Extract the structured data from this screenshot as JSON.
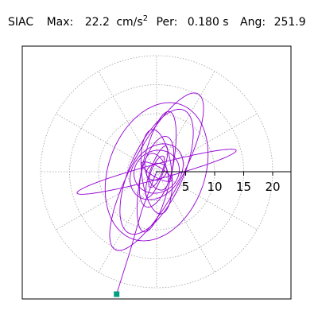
{
  "header": {
    "station": "SIAC",
    "max_label": "Max:",
    "max_value": "22.2",
    "max_unit_base": "cm/s",
    "max_unit_exp": "2",
    "per_label": "Per:",
    "per_value": "0.180 s",
    "ang_label": "Ang:",
    "ang_value": "251.9"
  },
  "colors": {
    "trace": "#9400d3",
    "marker": "#009f80",
    "grid": "#a0a0a0",
    "frame": "#000000"
  },
  "chart_data": {
    "type": "polar-hodogram",
    "title": "SIAC   Max:   22.2 cm/s2   Per:  0.180 s   Ang: 251.9",
    "radial_unit": "cm/s2",
    "radial_ticks": [
      5,
      10,
      15,
      20
    ],
    "radial_max": 20,
    "angular_grid_step_deg": 30,
    "peak_value": 22.2,
    "peak_angle_deg": 251.9,
    "period_s": 0.18,
    "grid": true,
    "loops": [
      {
        "ca": 4.7,
        "sa": 1.1,
        "ang": 70,
        "phase": 0.3
      },
      {
        "ca": 2.9,
        "sa": 0.9,
        "ang": 68,
        "phase": 1.2
      },
      {
        "ca": 6.3,
        "sa": 2.5,
        "ang": 74,
        "phase": 2.0
      },
      {
        "ca": 4.0,
        "sa": 3.6,
        "ang": 30,
        "phase": 0.7
      },
      {
        "ca": 10.6,
        "sa": 2.6,
        "ang": 78,
        "phase": 1.5
      },
      {
        "ca": 5.3,
        "sa": 4.0,
        "ang": 50,
        "phase": 2.6
      },
      {
        "ca": 14.2,
        "sa": 1.3,
        "ang": 15,
        "phase": 3.1
      },
      {
        "ca": 7.3,
        "sa": 2.6,
        "ang": 96,
        "phase": 0.9
      },
      {
        "ca": 11.6,
        "sa": 4.6,
        "ang": 66,
        "phase": 2.2
      },
      {
        "ca": 3.3,
        "sa": 1.8,
        "ang": 110,
        "phase": 1.8
      },
      {
        "ca": 12.3,
        "sa": 8.3,
        "ang": 70,
        "phase": 0.2
      },
      {
        "ca": 15.2,
        "sa": 4.3,
        "ang": 62,
        "phase": 2.9
      },
      {
        "ca": 3.0,
        "sa": 0.9,
        "ang": 150,
        "phase": 1.0
      },
      {
        "ca": 1.8,
        "sa": 1.4,
        "ang": 20,
        "phase": 2.4
      }
    ],
    "peak_tail": [
      [
        -2.5,
        6.5
      ],
      [
        -4.6,
        13.8
      ],
      [
        -6.9,
        21.1
      ]
    ]
  }
}
